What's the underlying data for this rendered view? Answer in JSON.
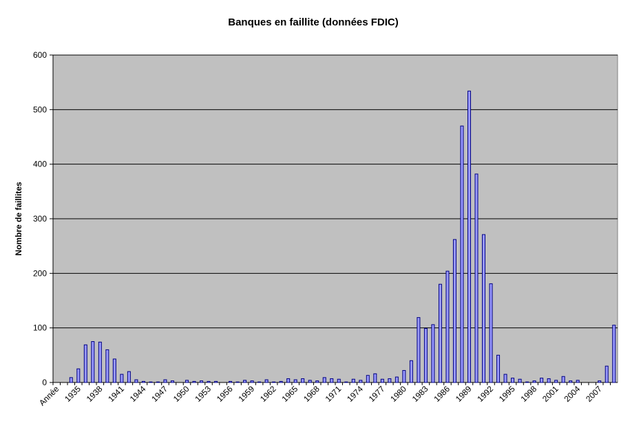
{
  "chart_data": {
    "type": "bar",
    "title": "Banques en faillite (données FDIC)",
    "y_label": "Nombre de faillites",
    "categories": [
      "Année",
      null,
      null,
      "1935",
      null,
      null,
      "1938",
      null,
      null,
      "1941",
      null,
      null,
      "1944",
      null,
      null,
      "1947",
      null,
      null,
      "1950",
      null,
      null,
      "1953",
      null,
      null,
      "1956",
      null,
      null,
      "1959",
      null,
      null,
      "1962",
      null,
      null,
      "1965",
      null,
      null,
      "1968",
      null,
      null,
      "1971",
      null,
      null,
      "1974",
      null,
      null,
      "1977",
      null,
      null,
      "1980",
      null,
      null,
      "1983",
      null,
      null,
      "1986",
      null,
      null,
      "1989",
      null,
      null,
      "1992",
      null,
      null,
      "1995",
      null,
      null,
      "1998",
      null,
      null,
      "2001",
      null,
      null,
      "2004",
      null,
      null,
      "2007",
      null,
      null
    ],
    "values": [
      null,
      0,
      9,
      25,
      69,
      75,
      74,
      60,
      43,
      15,
      20,
      5,
      2,
      1,
      1,
      5,
      3,
      0,
      4,
      2,
      3,
      2,
      2,
      0,
      2,
      1,
      4,
      3,
      1,
      5,
      1,
      2,
      7,
      5,
      7,
      4,
      3,
      9,
      7,
      6,
      1,
      6,
      4,
      13,
      16,
      6,
      7,
      10,
      22,
      40,
      119,
      99,
      106,
      180,
      204,
      262,
      470,
      534,
      382,
      271,
      181,
      50,
      15,
      8,
      6,
      1,
      3,
      8,
      7,
      4,
      11,
      3,
      4,
      0,
      0,
      3,
      30,
      105
    ],
    "color": "#9999ff",
    "ylim": [
      0,
      600
    ],
    "yticks": [
      0,
      100,
      200,
      300,
      400,
      500,
      600
    ],
    "grid": true
  }
}
